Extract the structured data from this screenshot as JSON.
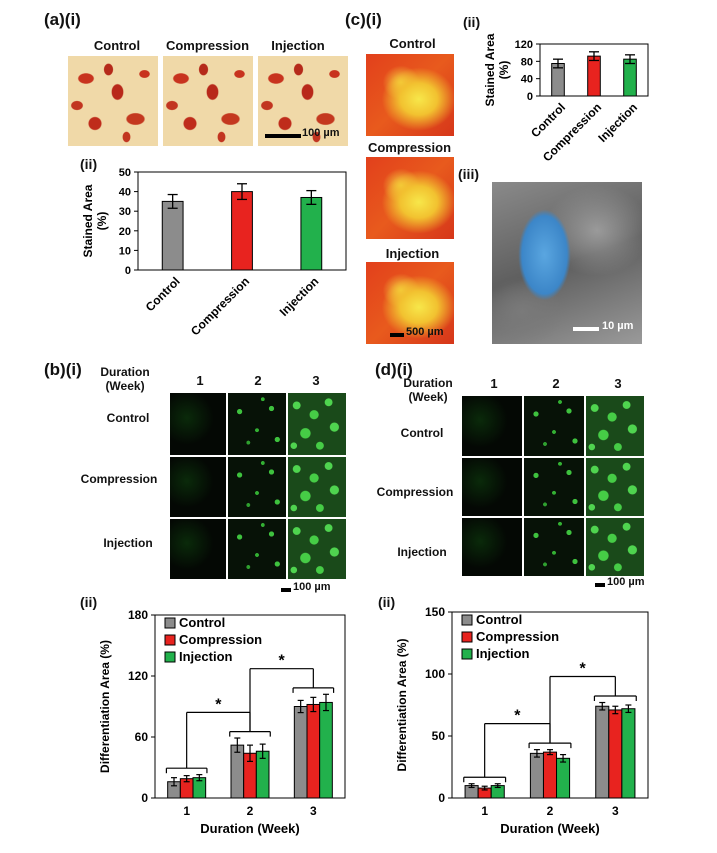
{
  "panel_a": {
    "label": "(a)",
    "sub_i": "(i)",
    "sub_ii": "(ii)",
    "image_titles": [
      "Control",
      "Compression",
      "Injection"
    ],
    "scale": "100 µm"
  },
  "panel_b": {
    "label": "(b)",
    "sub_i": "(i)",
    "sub_ii": "(ii)",
    "col_header": "Duration\n(Week)",
    "columns": [
      "1",
      "2",
      "3"
    ],
    "rows": [
      "Control",
      "Compression",
      "Injection"
    ],
    "scale": "100 µm"
  },
  "panel_c": {
    "label": "(c)",
    "sub_i": "(i)",
    "sub_ii": "(ii)",
    "sub_iii": "(iii)",
    "image_titles": [
      "Control",
      "Compression",
      "Injection"
    ],
    "scale_i": "500 µm",
    "scale_iii": "10 µm"
  },
  "panel_d": {
    "label": "(d)",
    "sub_i": "(i)",
    "sub_ii": "(ii)",
    "col_header": "Duration\n(Week)",
    "columns": [
      "1",
      "2",
      "3"
    ],
    "rows": [
      "Control",
      "Compression",
      "Injection"
    ],
    "scale": "100 µm"
  },
  "colors": {
    "control": "#8c8c8c",
    "compression": "#e8231f",
    "injection": "#22b14c"
  },
  "chart_data": [
    {
      "id": "a-ii",
      "type": "bar",
      "categories": [
        "Control",
        "Compression",
        "Injection"
      ],
      "values": [
        35,
        40,
        37
      ],
      "errors": [
        3.5,
        4,
        3.5
      ],
      "ylabel": "Stained Area\n(%)",
      "ylim": [
        0,
        50
      ],
      "yticks": [
        0,
        10,
        20,
        30,
        40,
        50
      ]
    },
    {
      "id": "c-ii",
      "type": "bar",
      "categories": [
        "Control",
        "Compression",
        "Injection"
      ],
      "values": [
        75,
        92,
        85
      ],
      "errors": [
        10,
        10,
        10
      ],
      "ylabel": "Stained Area\n(%)",
      "ylim": [
        0,
        120
      ],
      "yticks": [
        0,
        40,
        80,
        120
      ]
    },
    {
      "id": "b-ii",
      "type": "bar",
      "categories": [
        "1",
        "2",
        "3"
      ],
      "series": [
        {
          "name": "Control",
          "values": [
            16,
            52,
            90
          ],
          "errors": [
            4,
            7,
            6
          ]
        },
        {
          "name": "Compression",
          "values": [
            19,
            44,
            92
          ],
          "errors": [
            3,
            8,
            7
          ]
        },
        {
          "name": "Injection",
          "values": [
            20,
            46,
            94
          ],
          "errors": [
            3,
            7,
            8
          ]
        }
      ],
      "xlabel": "Duration (Week)",
      "ylabel": "Differentiation Area (%)",
      "ylim": [
        0,
        180
      ],
      "yticks": [
        0,
        60,
        120,
        180
      ],
      "significance": "*"
    },
    {
      "id": "d-ii",
      "type": "bar",
      "categories": [
        "1",
        "2",
        "3"
      ],
      "series": [
        {
          "name": "Control",
          "values": [
            10,
            36,
            74
          ],
          "errors": [
            1.5,
            3,
            3
          ]
        },
        {
          "name": "Compression",
          "values": [
            8,
            37,
            71
          ],
          "errors": [
            1.5,
            2,
            3
          ]
        },
        {
          "name": "Injection",
          "values": [
            10,
            32,
            72
          ],
          "errors": [
            1.5,
            3,
            3
          ]
        }
      ],
      "xlabel": "Duration (Week)",
      "ylabel": "Differentiation Area (%)",
      "ylim": [
        0,
        150
      ],
      "yticks": [
        0,
        50,
        100,
        150
      ],
      "significance": "*"
    }
  ]
}
